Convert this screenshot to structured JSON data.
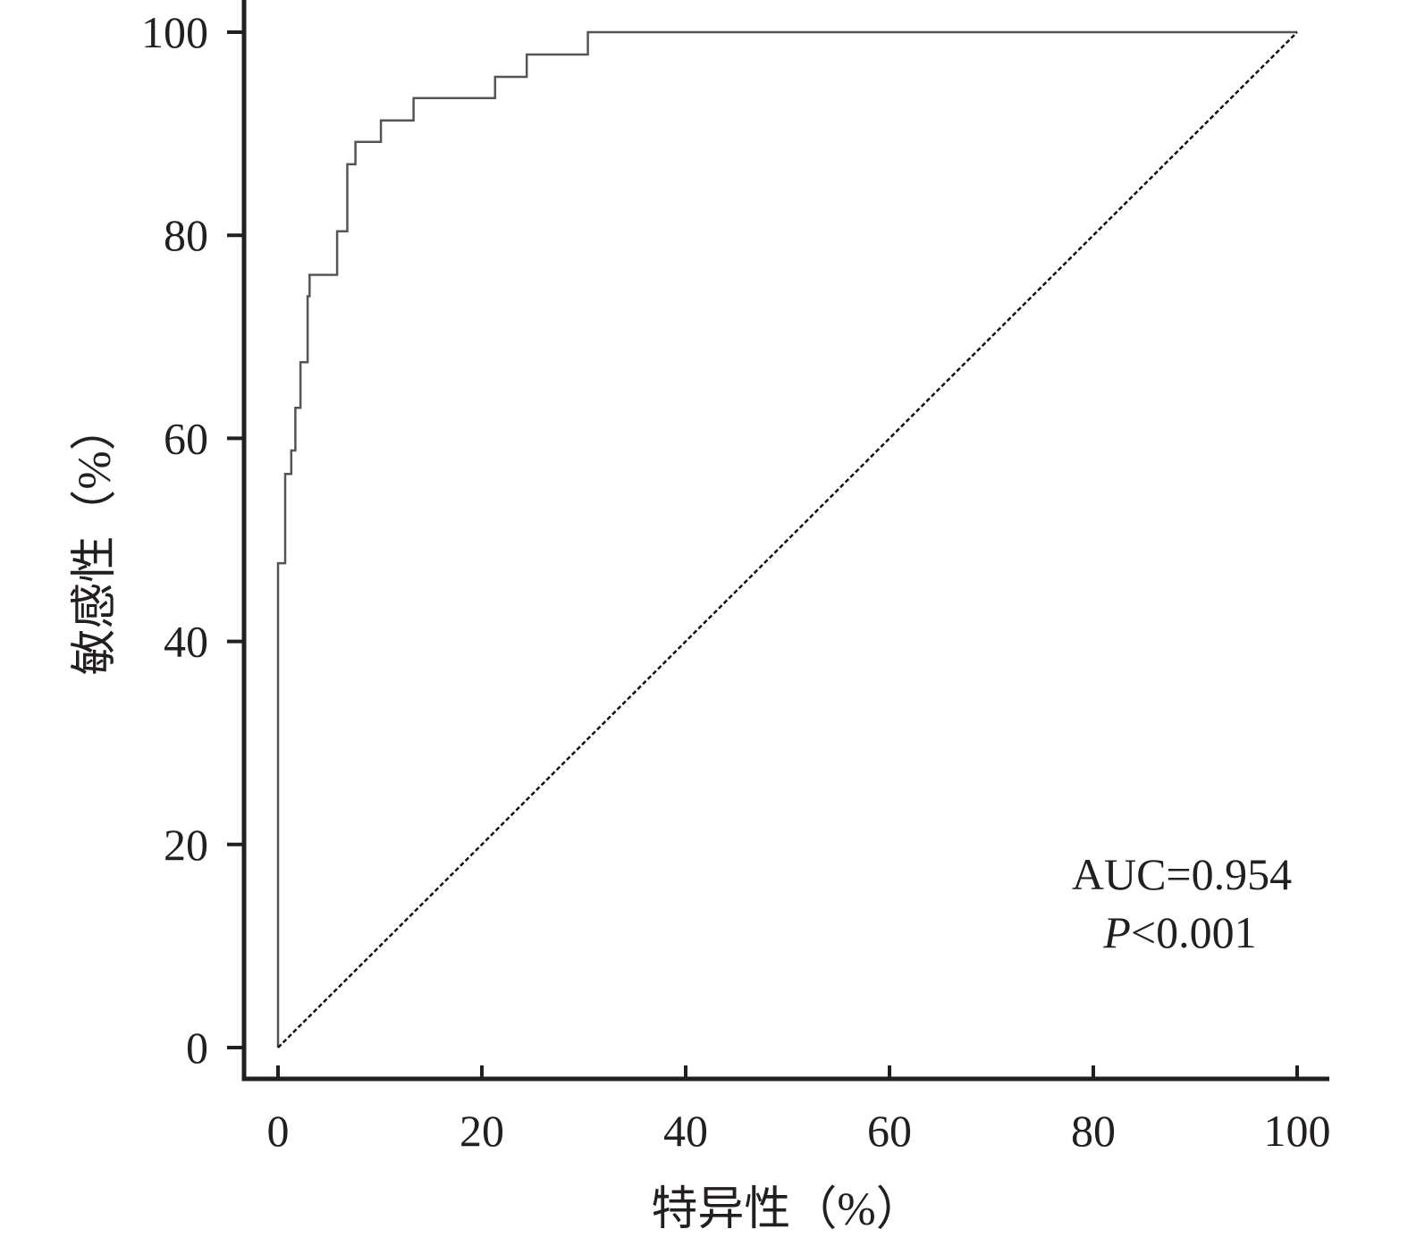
{
  "chart_data": {
    "type": "line",
    "title": "",
    "xlabel": "特异性（%）",
    "ylabel": "敏感性（%）",
    "xlim": [
      0,
      100
    ],
    "ylim": [
      0,
      100
    ],
    "x_ticks": [
      0,
      20,
      40,
      60,
      80,
      100
    ],
    "y_ticks": [
      0,
      20,
      40,
      60,
      80,
      100
    ],
    "x_tick_labels": [
      "0",
      "20",
      "40",
      "60",
      "80",
      "100"
    ],
    "y_tick_labels": [
      "0",
      "20",
      "40",
      "60",
      "80",
      "100"
    ],
    "grid": false,
    "legend": "none",
    "series": [
      {
        "style": "solid",
        "color": "#555555",
        "x": [
          0.0,
          0.0,
          0.7,
          0.7,
          1.3,
          1.3,
          1.7,
          1.7,
          2.2,
          2.2,
          2.9,
          2.9,
          3.1,
          3.1,
          5.8,
          5.8,
          6.8,
          6.8,
          7.6,
          7.6,
          10.1,
          10.1,
          13.3,
          13.3,
          21.3,
          21.3,
          24.4,
          24.4,
          30.4,
          30.4,
          47.0,
          47.0,
          100.0
        ],
        "y": [
          0.0,
          47.7,
          47.7,
          56.5,
          56.5,
          58.8,
          58.8,
          63.0,
          63.0,
          67.5,
          67.5,
          74.0,
          74.0,
          76.1,
          76.1,
          80.4,
          80.4,
          87.0,
          87.0,
          89.2,
          89.2,
          91.3,
          91.3,
          93.5,
          93.5,
          95.6,
          95.6,
          97.8,
          97.8,
          100.0,
          100.0,
          100.0,
          100.0
        ]
      },
      {
        "style": "dashed",
        "color": "#111111",
        "x": [
          0,
          100
        ],
        "y": [
          0,
          100
        ]
      }
    ],
    "annotations": [
      {
        "text": "AUC=0.954"
      },
      {
        "text_italic": "P",
        "text": "<0.001"
      }
    ]
  },
  "colors": {
    "axis": "#231f20",
    "text": "#231f20"
  }
}
